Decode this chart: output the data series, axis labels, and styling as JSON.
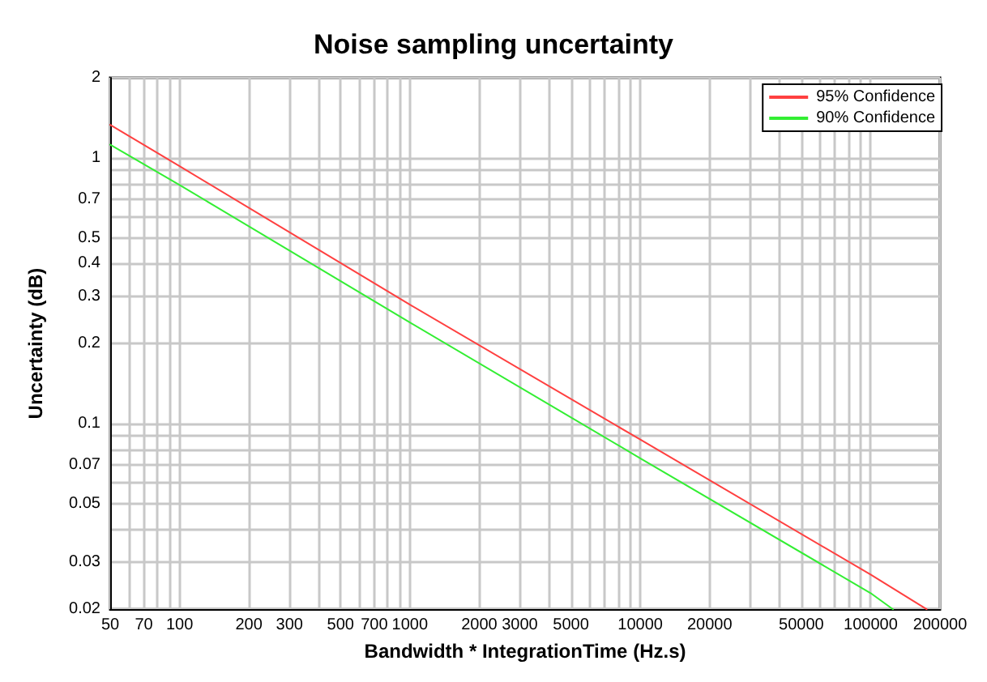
{
  "chart_data": {
    "type": "line",
    "title": "Noise sampling uncertainty",
    "xlabel": "Bandwidth * IntegrationTime (Hz.s)",
    "ylabel": "Uncertainty (dB)",
    "log": "xy",
    "grid": true,
    "legend": "top right",
    "marker": "none",
    "line_style": "solid",
    "series": [
      {
        "name": "95% Confidence",
        "color": "#ff4040",
        "x": [
          50,
          100,
          1000,
          10000,
          100000,
          175000
        ],
        "values": [
          1.33,
          0.93,
          0.28,
          0.087,
          0.027,
          0.02
        ]
      },
      {
        "name": "90% Confidence",
        "color": "#33ee33",
        "x": [
          50,
          100,
          1000,
          10000,
          100000,
          125000
        ],
        "values": [
          1.12,
          0.79,
          0.24,
          0.074,
          0.023,
          0.02
        ]
      }
    ],
    "xlim": [
      50,
      200000
    ],
    "xticks": [
      50,
      {
        "value": 60,
        "label": null
      },
      70,
      {
        "value": 80,
        "label": null
      },
      {
        "value": 90,
        "label": null
      },
      100,
      200,
      300,
      {
        "value": 400,
        "label": null
      },
      500,
      {
        "value": 600,
        "label": null
      },
      700,
      {
        "value": 800,
        "label": null
      },
      {
        "value": 900,
        "label": null
      },
      1000,
      2000,
      3000,
      {
        "value": 4000,
        "label": null
      },
      5000,
      {
        "value": 6000,
        "label": null
      },
      {
        "value": 7000,
        "label": null
      },
      {
        "value": 8000,
        "label": null
      },
      {
        "value": 9000,
        "label": null
      },
      10000,
      20000,
      {
        "value": 30000,
        "label": null
      },
      {
        "value": 40000,
        "label": null
      },
      50000,
      {
        "value": 60000,
        "label": null
      },
      {
        "value": 70000,
        "label": null
      },
      {
        "value": 80000,
        "label": null
      },
      {
        "value": 90000,
        "label": null
      },
      100000,
      200000
    ],
    "ylim": [
      0.02,
      2
    ],
    "yticks": [
      0.02,
      0.03,
      {
        "value": 0.04,
        "label": null
      },
      0.05,
      {
        "value": 0.06,
        "label": null
      },
      0.07,
      {
        "value": 0.08,
        "label": null
      },
      {
        "value": 0.09,
        "label": null
      },
      0.1,
      0.2,
      0.3,
      0.4,
      0.5,
      {
        "value": 0.6,
        "label": null
      },
      0.7,
      {
        "value": 0.8,
        "label": null
      },
      {
        "value": 0.9,
        "label": null
      },
      1,
      2
    ]
  }
}
